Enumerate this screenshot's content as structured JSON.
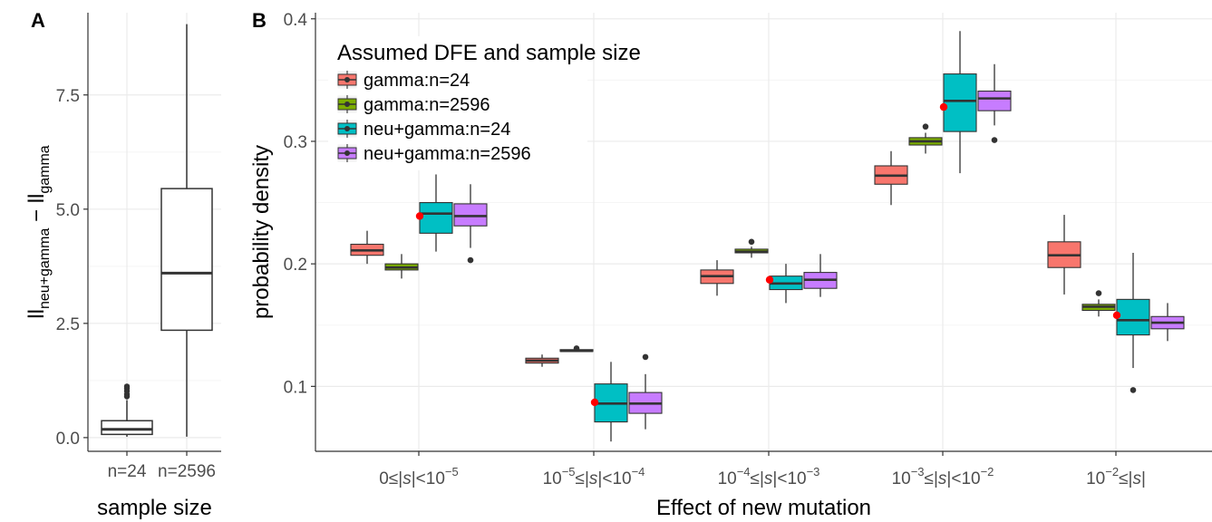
{
  "panels": {
    "a_label": "A",
    "b_label": "B"
  },
  "colors": {
    "gamma_n24": "#F8766D",
    "gamma_n2596": "#7CAE00",
    "neu_gamma_n24": "#00BFC4",
    "neu_gamma_n2596": "#C77CFF",
    "panel_bg": "#FFFFFF",
    "grid": "#EBEBEB",
    "red_dot": "#FF0000"
  },
  "chart_data": [
    {
      "type": "box",
      "panel": "A",
      "xlabel": "sample size",
      "ylabel_main": "ll",
      "ylabel_sub1": "neu+gamma",
      "ylabel_mid": " − ll",
      "ylabel_sub2": "gamma",
      "ylim": [
        -0.3,
        9.3
      ],
      "yticks": [
        "0.0",
        "2.5",
        "5.0",
        "7.5"
      ],
      "ytick_values": [
        0,
        2.5,
        5,
        7.5
      ],
      "categories": [
        "n=24",
        "n=2596"
      ],
      "boxes": [
        {
          "category": "n=24",
          "min": 0.02,
          "q1": 0.07,
          "median": 0.18,
          "q3": 0.37,
          "max": 0.82,
          "outliers": [
            0.9,
            0.95,
            1.02,
            1.08,
            1.12
          ]
        },
        {
          "category": "n=2596",
          "min": 0.02,
          "q1": 2.35,
          "median": 3.6,
          "q3": 5.45,
          "max": 9.05,
          "outliers": []
        }
      ]
    },
    {
      "type": "box",
      "panel": "B",
      "xlabel": "Effect of new mutation",
      "ylabel": "probability density",
      "ylim": [
        0.047,
        0.405
      ],
      "yticks": [
        "0.1",
        "0.2",
        "0.3",
        "0.4"
      ],
      "ytick_values": [
        0.1,
        0.2,
        0.3,
        0.4
      ],
      "categories": [
        {
          "base": "0≤|",
          "s": "s",
          "mid": "|<10",
          "sup": "−5",
          "pre": "",
          "presup": ""
        },
        {
          "pre": "10",
          "presup": "−5",
          "base": "≤|",
          "s": "s",
          "mid": "|<10",
          "sup": "−4"
        },
        {
          "pre": "10",
          "presup": "−4",
          "base": "≤|",
          "s": "s",
          "mid": "|<10",
          "sup": "−3"
        },
        {
          "pre": "10",
          "presup": "−3",
          "base": "≤|",
          "s": "s",
          "mid": "|<10",
          "sup": "−2"
        },
        {
          "pre": "10",
          "presup": "−2",
          "base": "≤|",
          "s": "s",
          "mid": "|",
          "sup": ""
        }
      ],
      "legend": {
        "title": "Assumed DFE and sample size",
        "position": "top-left"
      },
      "series": [
        {
          "name": "gamma:n=24",
          "color_key": "gamma_n24",
          "boxes": [
            {
              "min": 0.2,
              "q1": 0.207,
              "median": 0.211,
              "q3": 0.216,
              "max": 0.227,
              "outliers": []
            },
            {
              "min": 0.116,
              "q1": 0.119,
              "median": 0.121,
              "q3": 0.123,
              "max": 0.126,
              "outliers": []
            },
            {
              "min": 0.174,
              "q1": 0.184,
              "median": 0.19,
              "q3": 0.195,
              "max": 0.203,
              "outliers": []
            },
            {
              "min": 0.248,
              "q1": 0.265,
              "median": 0.272,
              "q3": 0.28,
              "max": 0.292,
              "outliers": []
            },
            {
              "min": 0.175,
              "q1": 0.197,
              "median": 0.207,
              "q3": 0.218,
              "max": 0.24,
              "outliers": []
            }
          ]
        },
        {
          "name": "gamma:n=2596",
          "color_key": "gamma_n2596",
          "boxes": [
            {
              "min": 0.188,
              "q1": 0.195,
              "median": 0.197,
              "q3": 0.2,
              "max": 0.208,
              "outliers": []
            },
            {
              "min": 0.129,
              "q1": 0.129,
              "median": 0.129,
              "q3": 0.13,
              "max": 0.13,
              "outliers": [
                0.131
              ]
            },
            {
              "min": 0.205,
              "q1": 0.209,
              "median": 0.21,
              "q3": 0.212,
              "max": 0.214,
              "outliers": [
                0.218
              ]
            },
            {
              "min": 0.29,
              "q1": 0.297,
              "median": 0.3,
              "q3": 0.303,
              "max": 0.307,
              "outliers": [
                0.312
              ]
            },
            {
              "min": 0.157,
              "q1": 0.162,
              "median": 0.165,
              "q3": 0.167,
              "max": 0.171,
              "outliers": [
                0.176
              ]
            }
          ]
        },
        {
          "name": "neu+gamma:n=24",
          "color_key": "neu_gamma_n24",
          "boxes": [
            {
              "min": 0.21,
              "q1": 0.225,
              "median": 0.241,
              "q3": 0.25,
              "max": 0.273,
              "outliers": []
            },
            {
              "min": 0.055,
              "q1": 0.071,
              "median": 0.086,
              "q3": 0.102,
              "max": 0.12,
              "outliers": []
            },
            {
              "min": 0.168,
              "q1": 0.179,
              "median": 0.184,
              "q3": 0.19,
              "max": 0.2,
              "outliers": []
            },
            {
              "min": 0.274,
              "q1": 0.308,
              "median": 0.333,
              "q3": 0.355,
              "max": 0.39,
              "outliers": []
            },
            {
              "min": 0.115,
              "q1": 0.142,
              "median": 0.154,
              "q3": 0.171,
              "max": 0.209,
              "outliers": [
                0.097
              ]
            }
          ]
        },
        {
          "name": "neu+gamma:n=2596",
          "color_key": "neu_gamma_n2596",
          "boxes": [
            {
              "min": 0.213,
              "q1": 0.231,
              "median": 0.239,
              "q3": 0.249,
              "max": 0.265,
              "outliers": [
                0.203
              ]
            },
            {
              "min": 0.065,
              "q1": 0.078,
              "median": 0.086,
              "q3": 0.095,
              "max": 0.11,
              "outliers": [
                0.124
              ]
            },
            {
              "min": 0.173,
              "q1": 0.18,
              "median": 0.187,
              "q3": 0.193,
              "max": 0.208,
              "outliers": []
            },
            {
              "min": 0.313,
              "q1": 0.325,
              "median": 0.335,
              "q3": 0.341,
              "max": 0.363,
              "outliers": [
                0.301
              ]
            },
            {
              "min": 0.137,
              "q1": 0.147,
              "median": 0.152,
              "q3": 0.157,
              "max": 0.168,
              "outliers": []
            }
          ]
        }
      ],
      "red_points": [
        0.239,
        0.087,
        0.187,
        0.328,
        0.158
      ]
    }
  ]
}
